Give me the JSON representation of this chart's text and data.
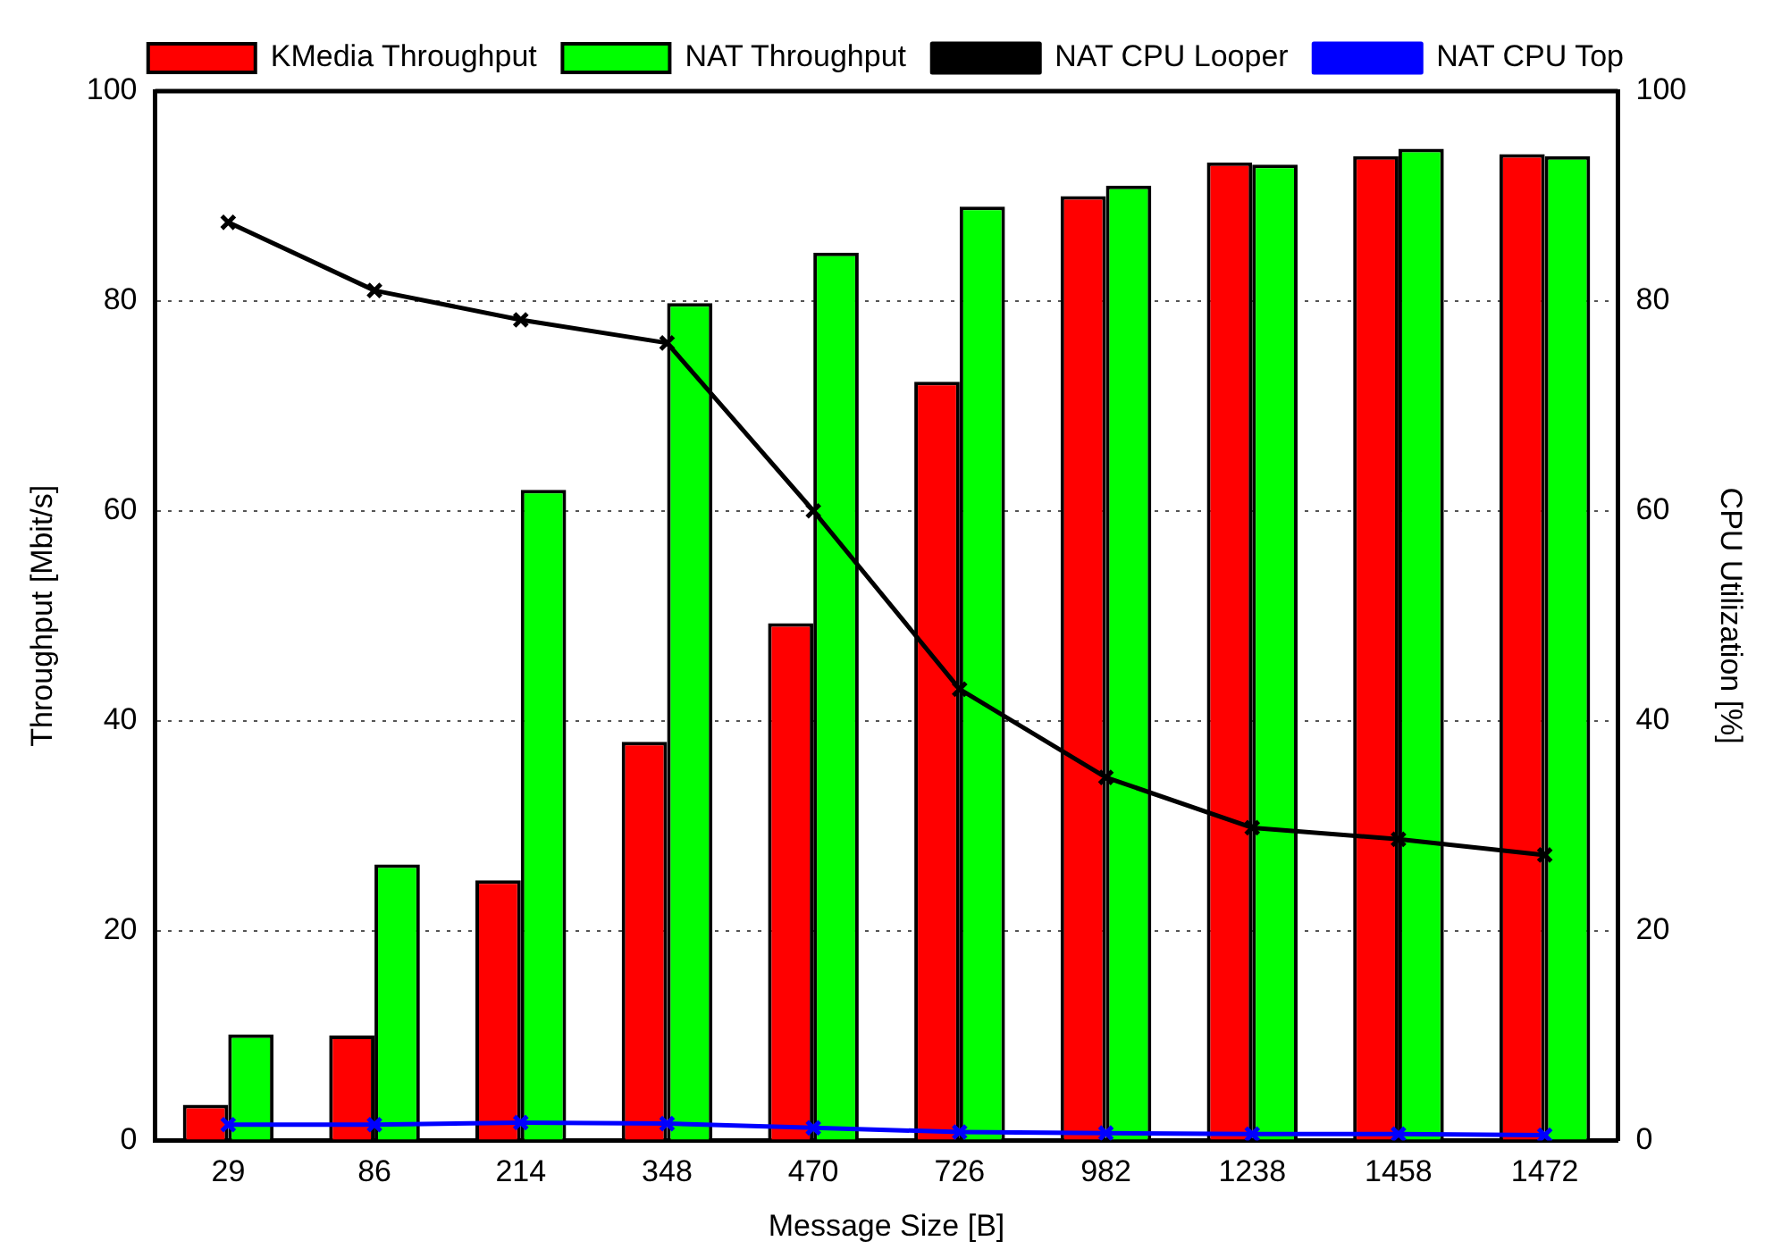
{
  "chart_data": {
    "type": "bar",
    "xlabel": "Message Size [B]",
    "ylabel": "Throughput [Mbit/s]",
    "y2label": "CPU Utilization [%]",
    "categories": [
      "29",
      "86",
      "214",
      "348",
      "470",
      "726",
      "982",
      "1238",
      "1458",
      "1472"
    ],
    "series": [
      {
        "name": "KMedia Throughput",
        "color": "#ff0000",
        "values": [
          3.4,
          10,
          24.8,
          38,
          49.3,
          72.3,
          90,
          93.2,
          93.8,
          94
        ]
      },
      {
        "name": "NAT Throughput",
        "color": "#00ff00",
        "values": [
          10.1,
          26.3,
          62,
          79.8,
          84.6,
          89,
          91,
          93,
          94.5,
          93.8
        ]
      },
      {
        "name": "NAT CPU Looper",
        "type": "line",
        "axis": "y2",
        "color": "#000000",
        "marker": "cross",
        "values": [
          87.5,
          81,
          78.2,
          76,
          60,
          43,
          34.6,
          29.8,
          28.7,
          27.2
        ]
      },
      {
        "name": "NAT CPU Top",
        "type": "line",
        "axis": "y2",
        "color": "#0000ff",
        "marker": "cross",
        "values": [
          1.5,
          1.5,
          1.7,
          1.6,
          1.2,
          0.8,
          0.7,
          0.6,
          0.6,
          0.5
        ]
      }
    ],
    "ylim": [
      0,
      100
    ],
    "yticks": [
      0,
      20,
      40,
      60,
      80,
      100
    ],
    "y2lim": [
      0,
      100
    ],
    "y2ticks": [
      0,
      20,
      40,
      60,
      80,
      100
    ],
    "grid": "y",
    "legend": "top"
  }
}
